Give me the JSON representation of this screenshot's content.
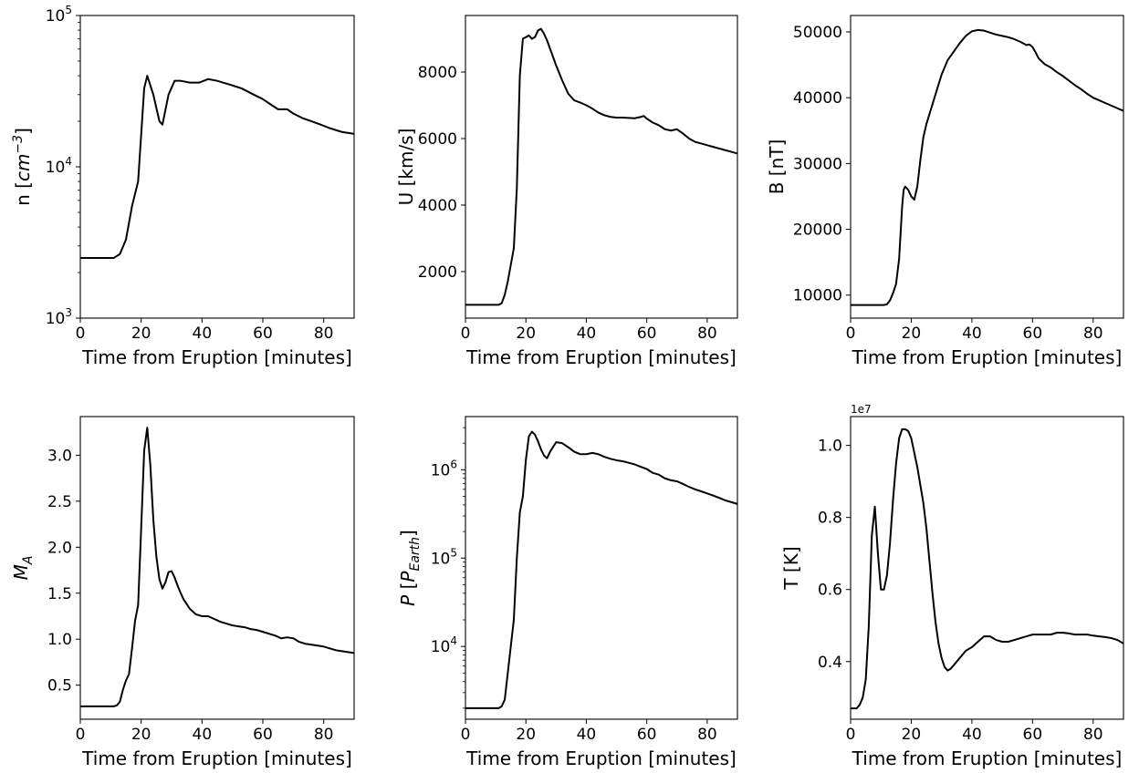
{
  "chart_data": [
    {
      "type": "line",
      "xlabel": "Time from Eruption [minutes]",
      "ylabel": "n [cm⁻³]",
      "ylabel_parts": [
        {
          "t": "n [",
          "i": false
        },
        {
          "t": "cm",
          "i": true
        },
        {
          "t": "−3",
          "i": true,
          "sup": true
        },
        {
          "t": "]",
          "i": false
        }
      ],
      "yscale": "log",
      "xlim": [
        0,
        90
      ],
      "ylim": [
        1000,
        100000
      ],
      "xticks": [
        0,
        20,
        40,
        60,
        80
      ],
      "yticks": [
        1000,
        10000,
        100000
      ],
      "ytick_labels": [
        [
          "10",
          "3"
        ],
        [
          "10",
          "4"
        ],
        [
          "10",
          "5"
        ]
      ],
      "series": [
        {
          "x": [
            0,
            11,
            13,
            15,
            17,
            19,
            21,
            22,
            24,
            26,
            27,
            29,
            31,
            33,
            36,
            39,
            42,
            45,
            49,
            53,
            57,
            60,
            63,
            65,
            68,
            70,
            73,
            76,
            79,
            82,
            86,
            90
          ],
          "y": [
            2500,
            2500,
            2650,
            3300,
            5500,
            8000,
            33000,
            40000,
            30000,
            20000,
            19000,
            30000,
            37000,
            37000,
            36000,
            36000,
            38000,
            37000,
            35000,
            33000,
            30000,
            28000,
            25500,
            24000,
            24000,
            22500,
            21000,
            20000,
            19000,
            18000,
            17000,
            16500
          ]
        }
      ]
    },
    {
      "type": "line",
      "xlabel": "Time from Eruption [minutes]",
      "ylabel": "U [km/s]",
      "ylabel_parts": [
        {
          "t": "U [km/s]",
          "i": false
        }
      ],
      "yscale": "linear",
      "xlim": [
        0,
        90
      ],
      "ylim": [
        600,
        9700
      ],
      "xticks": [
        0,
        20,
        40,
        60,
        80
      ],
      "yticks": [
        2000,
        4000,
        6000,
        8000
      ],
      "ytick_labels": [
        "2000",
        "4000",
        "6000",
        "8000"
      ],
      "series": [
        {
          "x": [
            0,
            11,
            12,
            13,
            14,
            15,
            16,
            17,
            18,
            19,
            20,
            21,
            22,
            23,
            24,
            25,
            26,
            27,
            28,
            30,
            32,
            34,
            36,
            38,
            40,
            42,
            44,
            46,
            48,
            50,
            52,
            54,
            56,
            58,
            59,
            60,
            62,
            64,
            66,
            68,
            70,
            72,
            74,
            76,
            78,
            80,
            82,
            84,
            86,
            88,
            90
          ],
          "y": [
            1000,
            1000,
            1050,
            1300,
            1700,
            2200,
            2700,
            4500,
            7900,
            9000,
            9050,
            9100,
            9000,
            9050,
            9250,
            9300,
            9150,
            8950,
            8700,
            8200,
            7750,
            7350,
            7150,
            7080,
            7000,
            6900,
            6780,
            6700,
            6650,
            6630,
            6630,
            6620,
            6610,
            6650,
            6680,
            6600,
            6480,
            6400,
            6280,
            6240,
            6280,
            6150,
            6000,
            5900,
            5850,
            5800,
            5750,
            5700,
            5650,
            5600,
            5550
          ]
        }
      ]
    },
    {
      "type": "line",
      "xlabel": "Time from Eruption [minutes]",
      "ylabel": "B [nT]",
      "ylabel_parts": [
        {
          "t": "B [nT]",
          "i": false
        }
      ],
      "yscale": "linear",
      "xlim": [
        0,
        90
      ],
      "ylim": [
        6500,
        52500
      ],
      "xticks": [
        0,
        20,
        40,
        60,
        80
      ],
      "yticks": [
        10000,
        20000,
        30000,
        40000,
        50000
      ],
      "ytick_labels": [
        "10000",
        "20000",
        "30000",
        "40000",
        "50000"
      ],
      "series": [
        {
          "x": [
            0,
            11,
            12,
            13,
            14,
            15,
            16,
            17,
            17.5,
            18,
            19,
            20,
            21,
            22,
            23,
            24,
            25,
            26,
            28,
            30,
            32,
            34,
            36,
            38,
            40,
            42,
            44,
            46,
            48,
            50,
            52,
            54,
            56,
            58,
            59,
            60,
            61,
            62,
            64,
            66,
            68,
            70,
            72,
            74,
            76,
            78,
            80,
            82,
            84,
            86,
            88,
            90
          ],
          "y": [
            8500,
            8500,
            8600,
            9200,
            10300,
            11700,
            15500,
            23500,
            26000,
            26500,
            26000,
            25000,
            24500,
            26500,
            30500,
            34000,
            36000,
            37500,
            40500,
            43500,
            45700,
            47000,
            48300,
            49400,
            50100,
            50300,
            50200,
            49900,
            49600,
            49400,
            49200,
            48900,
            48500,
            48000,
            48100,
            47700,
            46900,
            46000,
            45100,
            44600,
            43900,
            43300,
            42600,
            41900,
            41300,
            40600,
            40000,
            39600,
            39200,
            38800,
            38400,
            38000
          ]
        }
      ]
    },
    {
      "type": "line",
      "xlabel": "Time from Eruption [minutes]",
      "ylabel": "M_A",
      "ylabel_parts": [
        {
          "t": "M",
          "i": true
        },
        {
          "t": "A",
          "i": true,
          "sub": true
        }
      ],
      "yscale": "linear",
      "xlim": [
        0,
        90
      ],
      "ylim": [
        0.13,
        3.42
      ],
      "xticks": [
        0,
        20,
        40,
        60,
        80
      ],
      "yticks": [
        0.5,
        1.0,
        1.5,
        2.0,
        2.5,
        3.0
      ],
      "ytick_labels": [
        "0.5",
        "1.0",
        "1.5",
        "2.0",
        "2.5",
        "3.0"
      ],
      "series": [
        {
          "x": [
            0,
            11,
            12,
            13,
            14,
            15,
            16,
            17,
            18,
            19,
            20,
            21,
            22,
            23,
            24,
            25,
            26,
            27,
            28,
            29,
            30,
            31,
            32,
            33,
            34,
            36,
            38,
            40,
            42,
            44,
            46,
            48,
            50,
            52,
            54,
            56,
            58,
            60,
            62,
            64,
            66,
            68,
            70,
            72,
            74,
            76,
            78,
            80,
            82,
            84,
            86,
            88,
            90
          ],
          "y": [
            0.27,
            0.27,
            0.28,
            0.32,
            0.45,
            0.55,
            0.62,
            0.9,
            1.2,
            1.37,
            2.2,
            3.05,
            3.3,
            2.9,
            2.3,
            1.9,
            1.65,
            1.55,
            1.62,
            1.73,
            1.74,
            1.67,
            1.58,
            1.5,
            1.43,
            1.33,
            1.27,
            1.25,
            1.25,
            1.22,
            1.19,
            1.17,
            1.15,
            1.14,
            1.13,
            1.11,
            1.1,
            1.08,
            1.06,
            1.04,
            1.01,
            1.02,
            1.01,
            0.97,
            0.95,
            0.94,
            0.93,
            0.92,
            0.9,
            0.88,
            0.87,
            0.86,
            0.85
          ]
        }
      ]
    },
    {
      "type": "line",
      "xlabel": "Time from Eruption [minutes]",
      "ylabel": "P [P_Earth]",
      "ylabel_parts": [
        {
          "t": "P",
          "i": true
        },
        {
          "t": " [",
          "i": false
        },
        {
          "t": "P",
          "i": true
        },
        {
          "t": "Earth",
          "i": true,
          "sub": true
        },
        {
          "t": "]",
          "i": false
        }
      ],
      "yscale": "log",
      "xlim": [
        0,
        90
      ],
      "ylim": [
        1500,
        4000000
      ],
      "xticks": [
        0,
        20,
        40,
        60,
        80
      ],
      "yticks": [
        10000,
        100000,
        1000000
      ],
      "ytick_labels": [
        [
          "10",
          "4"
        ],
        [
          "10",
          "5"
        ],
        [
          "10",
          "6"
        ]
      ],
      "series": [
        {
          "x": [
            0,
            11,
            12,
            13,
            14,
            15,
            16,
            17,
            18,
            19,
            20,
            21,
            22,
            23,
            24,
            25,
            26,
            27,
            28,
            30,
            32,
            34,
            36,
            38,
            40,
            42,
            44,
            46,
            48,
            50,
            52,
            54,
            56,
            58,
            60,
            62,
            64,
            66,
            68,
            70,
            72,
            74,
            76,
            78,
            80,
            82,
            84,
            86,
            88,
            90
          ],
          "y": [
            2000,
            2000,
            2100,
            2500,
            5000,
            10000,
            20000,
            100000,
            330000,
            500000,
            1300000,
            2400000,
            2700000,
            2500000,
            2100000,
            1700000,
            1450000,
            1350000,
            1600000,
            2050000,
            2000000,
            1800000,
            1600000,
            1500000,
            1500000,
            1550000,
            1500000,
            1400000,
            1330000,
            1280000,
            1250000,
            1200000,
            1150000,
            1080000,
            1020000,
            920000,
            880000,
            800000,
            760000,
            740000,
            690000,
            640000,
            600000,
            570000,
            540000,
            510000,
            480000,
            450000,
            430000,
            410000
          ]
        }
      ]
    },
    {
      "type": "line",
      "xlabel": "Time from Eruption [minutes]",
      "ylabel": "T [K]",
      "ylabel_parts": [
        {
          "t": "T [K]",
          "i": false
        }
      ],
      "offset_text": "1e7",
      "yscale": "linear",
      "xlim": [
        0,
        90
      ],
      "ylim": [
        0.24,
        1.08
      ],
      "xticks": [
        0,
        20,
        40,
        60,
        80
      ],
      "yticks": [
        0.4,
        0.6,
        0.8,
        1.0
      ],
      "ytick_labels": [
        "0.4",
        "0.6",
        "0.8",
        "1.0"
      ],
      "series": [
        {
          "x": [
            0,
            2,
            3,
            4,
            5,
            6,
            7,
            8,
            9,
            10,
            11,
            12,
            13,
            14,
            15,
            16,
            17,
            18,
            19,
            20,
            21,
            22,
            23,
            24,
            25,
            26,
            27,
            28,
            29,
            30,
            31,
            32,
            33,
            34,
            36,
            38,
            40,
            42,
            44,
            46,
            48,
            50,
            52,
            54,
            56,
            58,
            60,
            62,
            64,
            66,
            68,
            70,
            72,
            74,
            76,
            78,
            80,
            82,
            84,
            86,
            88,
            90
          ],
          "y": [
            0.27,
            0.27,
            0.28,
            0.3,
            0.35,
            0.5,
            0.75,
            0.83,
            0.7,
            0.6,
            0.6,
            0.64,
            0.73,
            0.85,
            0.95,
            1.02,
            1.045,
            1.045,
            1.04,
            1.02,
            0.98,
            0.94,
            0.89,
            0.84,
            0.77,
            0.68,
            0.59,
            0.51,
            0.45,
            0.41,
            0.385,
            0.375,
            0.38,
            0.39,
            0.41,
            0.43,
            0.44,
            0.455,
            0.47,
            0.47,
            0.46,
            0.455,
            0.455,
            0.46,
            0.465,
            0.47,
            0.475,
            0.475,
            0.475,
            0.475,
            0.48,
            0.48,
            0.478,
            0.475,
            0.475,
            0.475,
            0.472,
            0.47,
            0.468,
            0.465,
            0.46,
            0.45
          ]
        }
      ]
    }
  ]
}
